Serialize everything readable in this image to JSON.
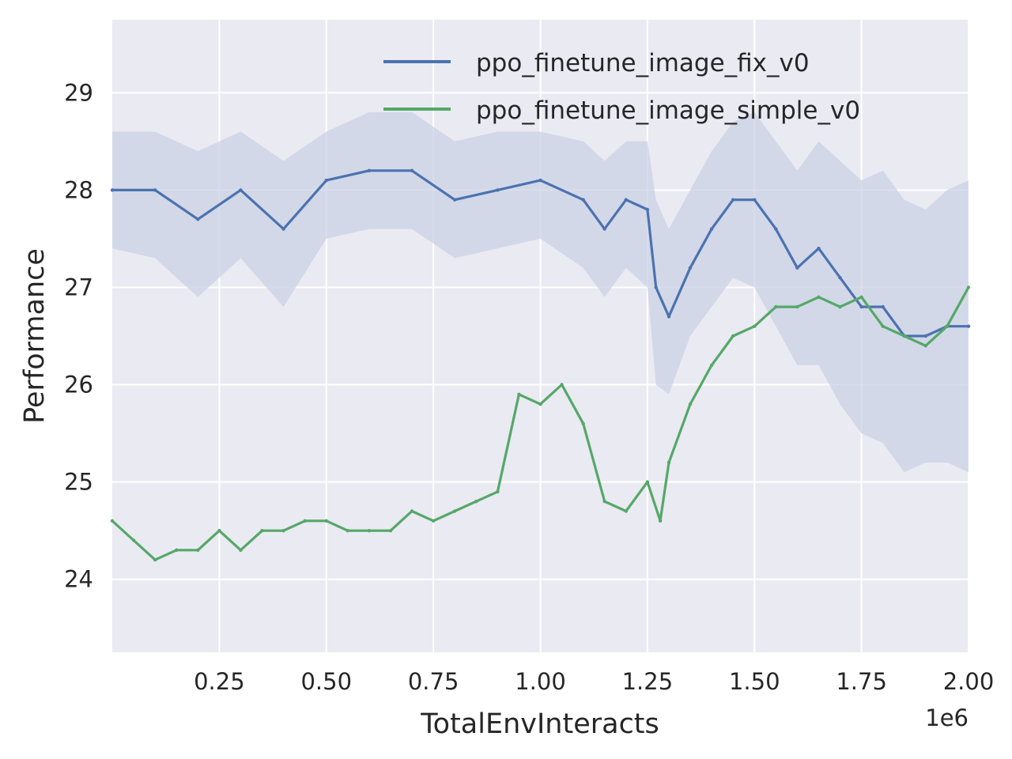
{
  "chart_data": {
    "type": "line",
    "title": "",
    "xlabel": "TotalEnvInteracts",
    "ylabel": "Performance",
    "x_offset_label": "1e6",
    "xlim": [
      0,
      2000000
    ],
    "ylim": [
      23.25,
      29.75
    ],
    "x_ticks": [
      250000,
      500000,
      750000,
      1000000,
      1250000,
      1500000,
      1750000,
      2000000
    ],
    "x_tick_labels": [
      "0.25",
      "0.50",
      "0.75",
      "1.00",
      "1.25",
      "1.50",
      "1.75",
      "2.00"
    ],
    "y_ticks": [
      24,
      25,
      26,
      27,
      28,
      29
    ],
    "y_tick_labels": [
      "24",
      "25",
      "26",
      "27",
      "28",
      "29"
    ],
    "grid": true,
    "legend_position": "top-right",
    "colors": {
      "background": "#eaeaf2",
      "grid": "#ffffff",
      "series_blue": "#4c72b0",
      "series_green": "#55a868",
      "band_blue": "#c9d1e4"
    },
    "series": [
      {
        "name": "ppo_finetune_image_fix_v0",
        "color": "#4c72b0",
        "x": [
          0,
          100000,
          200000,
          300000,
          400000,
          500000,
          600000,
          700000,
          800000,
          900000,
          1000000,
          1100000,
          1150000,
          1200000,
          1250000,
          1270000,
          1300000,
          1350000,
          1400000,
          1450000,
          1500000,
          1550000,
          1600000,
          1650000,
          1700000,
          1750000,
          1800000,
          1850000,
          1900000,
          1950000,
          2000000
        ],
        "y": [
          28.0,
          28.0,
          27.7,
          28.0,
          27.6,
          28.1,
          28.2,
          28.2,
          27.9,
          28.0,
          28.1,
          27.9,
          27.6,
          27.9,
          27.8,
          27.0,
          26.7,
          27.2,
          27.6,
          27.9,
          27.9,
          27.6,
          27.2,
          27.4,
          27.1,
          26.8,
          26.8,
          26.5,
          26.5,
          26.6,
          26.6
        ],
        "band_low": [
          27.4,
          27.3,
          26.9,
          27.3,
          26.8,
          27.5,
          27.6,
          27.6,
          27.3,
          27.4,
          27.5,
          27.2,
          26.9,
          27.2,
          27.0,
          26.0,
          25.9,
          26.5,
          26.8,
          27.1,
          27.0,
          26.6,
          26.2,
          26.2,
          25.8,
          25.5,
          25.4,
          25.1,
          25.2,
          25.2,
          25.1
        ],
        "band_high": [
          28.6,
          28.6,
          28.4,
          28.6,
          28.3,
          28.6,
          28.8,
          28.8,
          28.5,
          28.6,
          28.6,
          28.5,
          28.3,
          28.5,
          28.5,
          27.9,
          27.6,
          28.0,
          28.4,
          28.7,
          28.8,
          28.5,
          28.2,
          28.5,
          28.3,
          28.1,
          28.2,
          27.9,
          27.8,
          28.0,
          28.1
        ]
      },
      {
        "name": "ppo_finetune_image_simple_v0",
        "color": "#55a868",
        "x": [
          0,
          50000,
          100000,
          150000,
          200000,
          250000,
          300000,
          350000,
          400000,
          450000,
          500000,
          550000,
          600000,
          650000,
          700000,
          750000,
          800000,
          850000,
          900000,
          950000,
          1000000,
          1050000,
          1100000,
          1150000,
          1200000,
          1250000,
          1280000,
          1300000,
          1350000,
          1400000,
          1450000,
          1500000,
          1550000,
          1600000,
          1650000,
          1700000,
          1750000,
          1800000,
          1850000,
          1900000,
          1950000,
          2000000
        ],
        "y": [
          24.6,
          24.4,
          24.2,
          24.3,
          24.3,
          24.5,
          24.3,
          24.5,
          24.5,
          24.6,
          24.6,
          24.5,
          24.5,
          24.5,
          24.7,
          24.6,
          24.7,
          24.8,
          24.9,
          25.9,
          25.8,
          26.0,
          25.6,
          24.8,
          24.7,
          25.0,
          24.6,
          25.2,
          25.8,
          26.2,
          26.5,
          26.6,
          26.8,
          26.8,
          26.9,
          26.8,
          26.9,
          26.6,
          26.5,
          26.4,
          26.6,
          27.0
        ],
        "band_low": [],
        "band_high": []
      }
    ]
  }
}
